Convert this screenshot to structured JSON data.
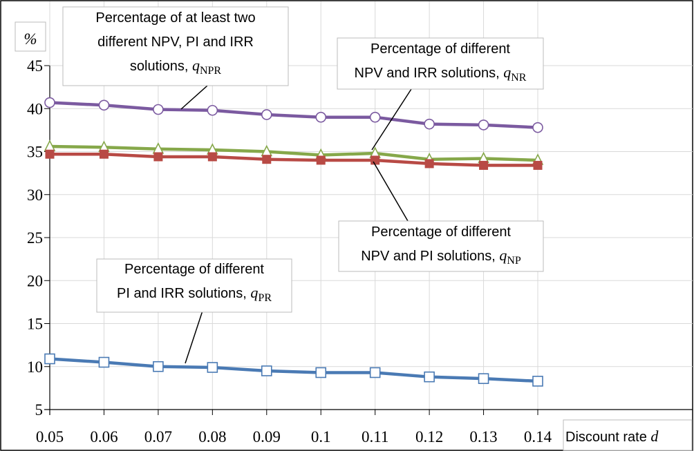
{
  "chart_data": {
    "type": "line",
    "y_label": "%",
    "x_label": "Discount rate",
    "x_symbol": "d",
    "x": [
      0.05,
      0.06,
      0.07,
      0.08,
      0.09,
      0.1,
      0.11,
      0.12,
      0.13,
      0.14
    ],
    "xlim": [
      0.05,
      0.14
    ],
    "xticks": [
      0.05,
      0.06,
      0.07,
      0.08,
      0.09,
      0.1,
      0.11,
      0.12,
      0.13,
      0.14
    ],
    "ylim": [
      5,
      45
    ],
    "yticks": [
      5,
      10,
      15,
      20,
      25,
      30,
      35,
      40,
      45
    ],
    "grid": true,
    "series": [
      {
        "color": "#7b5aa0",
        "marker": "circle",
        "values": [
          40.7,
          40.4,
          39.9,
          39.8,
          39.3,
          39.0,
          39.0,
          38.2,
          38.1,
          37.8
        ]
      },
      {
        "color": "#86a84a",
        "marker": "triangle",
        "values": [
          35.6,
          35.5,
          35.3,
          35.2,
          35.0,
          34.6,
          34.8,
          34.1,
          34.2,
          34.0
        ]
      },
      {
        "color": "#b84a45",
        "marker": "square-filled",
        "values": [
          34.7,
          34.7,
          34.4,
          34.4,
          34.1,
          34.0,
          34.0,
          33.6,
          33.4,
          33.4
        ]
      },
      {
        "color": "#4a7ab4",
        "marker": "square",
        "values": [
          10.9,
          10.5,
          10.0,
          9.9,
          9.5,
          9.3,
          9.3,
          8.8,
          8.6,
          8.3
        ]
      }
    ],
    "annotations": [
      {
        "lines": [
          "Percentage of at least two",
          "different NPV, PI and IRR",
          "solutions,"
        ],
        "symbol": "q",
        "subscript": "NPR"
      },
      {
        "lines": [
          "Percentage of different",
          "NPV and IRR solutions,"
        ],
        "symbol": "q",
        "subscript": "NR"
      },
      {
        "lines": [
          "Percentage of different",
          "NPV and PI solutions,"
        ],
        "symbol": "q",
        "subscript": "NP"
      },
      {
        "lines": [
          "Percentage of different",
          "PI and IRR solutions,"
        ],
        "symbol": "q",
        "subscript": "PR"
      }
    ]
  }
}
